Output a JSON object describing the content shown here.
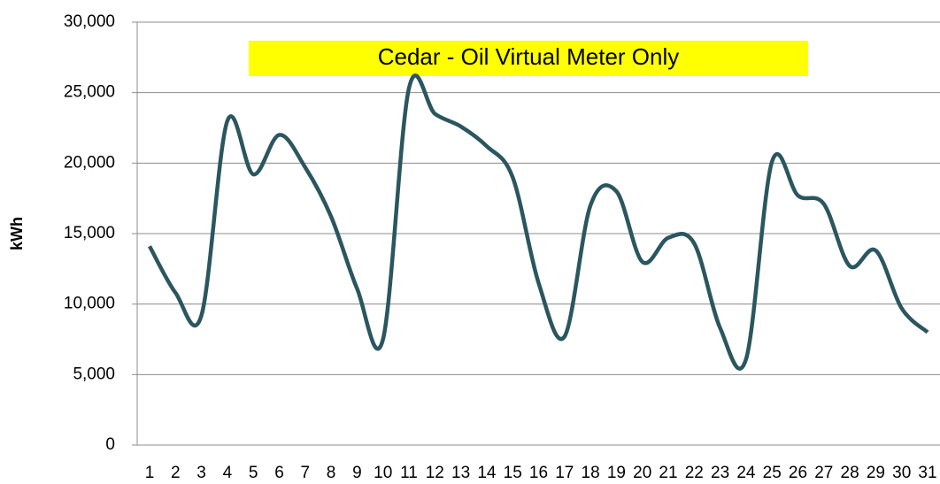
{
  "chart_data": {
    "type": "line",
    "title": "Cedar - Oil Virtual Meter Only",
    "y_label": "kWh",
    "categories": [
      "1",
      "2",
      "3",
      "4",
      "5",
      "6",
      "7",
      "8",
      "9",
      "10",
      "11",
      "12",
      "13",
      "14",
      "15",
      "16",
      "17",
      "18",
      "19",
      "20",
      "21",
      "22",
      "23",
      "24",
      "25",
      "26",
      "27",
      "28",
      "29",
      "30",
      "31"
    ],
    "series": [
      {
        "name": "kWh",
        "color": "#2b5660",
        "values": [
          14100,
          10800,
          9200,
          23000,
          19200,
          22000,
          19700,
          16200,
          11100,
          7500,
          25300,
          23500,
          22600,
          21200,
          19000,
          11500,
          7700,
          17000,
          18000,
          13000,
          14700,
          14300,
          8300,
          6100,
          20100,
          17700,
          17100,
          12700,
          13800,
          9700,
          8000
        ]
      }
    ],
    "ylim": [
      0,
      30000
    ],
    "yticks": [
      0,
      {
        "value": 5000,
        "label": "5,000"
      },
      {
        "value": 10000,
        "label": "10,000"
      },
      {
        "value": 15000,
        "label": "15,000"
      },
      {
        "value": 20000,
        "label": "20,000"
      },
      {
        "value": 25000,
        "label": "25,000"
      },
      {
        "value": 30000,
        "label": "30,000"
      }
    ],
    "grid": true
  }
}
